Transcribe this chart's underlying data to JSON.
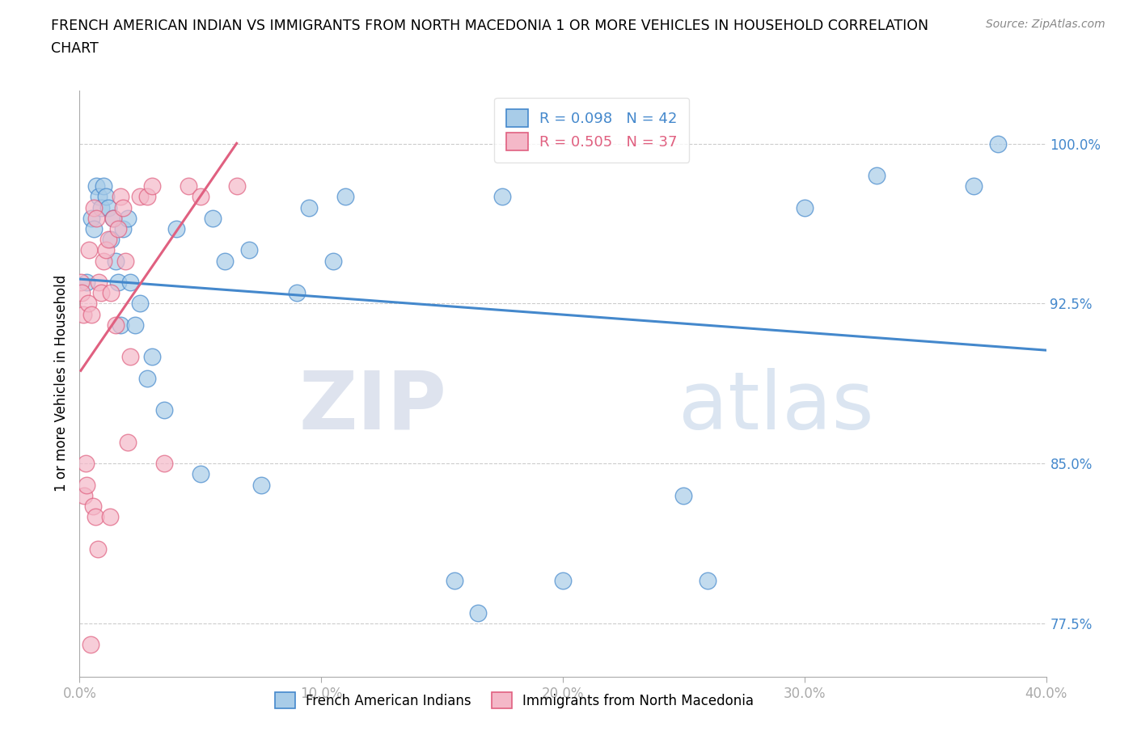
{
  "title_line1": "FRENCH AMERICAN INDIAN VS IMMIGRANTS FROM NORTH MACEDONIA 1 OR MORE VEHICLES IN HOUSEHOLD CORRELATION",
  "title_line2": "CHART",
  "source_text": "Source: ZipAtlas.com",
  "xlabel_ticks": [
    "0.0%",
    "10.0%",
    "20.0%",
    "30.0%",
    "40.0%"
  ],
  "xlabel_tick_vals": [
    0.0,
    10.0,
    20.0,
    30.0,
    40.0
  ],
  "ylabel": "1 or more Vehicles in Household",
  "ylabel_ticks": [
    "77.5%",
    "85.0%",
    "92.5%",
    "100.0%"
  ],
  "ylabel_tick_vals": [
    77.5,
    85.0,
    92.5,
    100.0
  ],
  "xlim": [
    0.0,
    40.0
  ],
  "ylim": [
    75.0,
    102.5
  ],
  "legend_blue_r": "R = 0.098",
  "legend_blue_n": "N = 42",
  "legend_pink_r": "R = 0.505",
  "legend_pink_n": "N = 37",
  "legend_label_blue": "French American Indians",
  "legend_label_pink": "Immigrants from North Macedonia",
  "blue_color": "#a8cce8",
  "pink_color": "#f4b8c8",
  "blue_line_color": "#4488cc",
  "pink_line_color": "#e06080",
  "text_color_blue": "#4488cc",
  "watermark_zip": "ZIP",
  "watermark_atlas": "atlas",
  "blue_x": [
    0.3,
    0.5,
    0.6,
    0.7,
    0.8,
    0.9,
    1.0,
    1.1,
    1.2,
    1.3,
    1.4,
    1.5,
    1.6,
    1.7,
    1.8,
    2.0,
    2.1,
    2.3,
    2.5,
    2.8,
    3.0,
    3.5,
    4.0,
    5.0,
    5.5,
    6.0,
    7.5,
    9.0,
    9.5,
    10.5,
    11.0,
    15.5,
    16.5,
    17.5,
    20.0,
    25.0,
    30.0,
    33.0,
    37.0,
    38.0,
    26.0,
    7.0
  ],
  "blue_y": [
    93.5,
    96.5,
    96.0,
    98.0,
    97.5,
    97.0,
    98.0,
    97.5,
    97.0,
    95.5,
    96.5,
    94.5,
    93.5,
    91.5,
    96.0,
    96.5,
    93.5,
    91.5,
    92.5,
    89.0,
    90.0,
    87.5,
    96.0,
    84.5,
    96.5,
    94.5,
    84.0,
    93.0,
    97.0,
    94.5,
    97.5,
    79.5,
    78.0,
    97.5,
    79.5,
    83.5,
    97.0,
    98.5,
    98.0,
    100.0,
    79.5,
    95.0
  ],
  "pink_x": [
    0.05,
    0.1,
    0.15,
    0.2,
    0.3,
    0.35,
    0.4,
    0.5,
    0.6,
    0.7,
    0.8,
    0.9,
    1.0,
    1.1,
    1.2,
    1.3,
    1.4,
    1.5,
    1.6,
    1.7,
    1.8,
    1.9,
    2.0,
    2.1,
    2.5,
    2.8,
    3.0,
    3.5,
    4.5,
    5.0,
    6.5,
    0.25,
    0.45,
    0.55,
    0.65,
    0.75,
    1.25
  ],
  "pink_y": [
    93.5,
    93.0,
    92.0,
    83.5,
    84.0,
    92.5,
    95.0,
    92.0,
    97.0,
    96.5,
    93.5,
    93.0,
    94.5,
    95.0,
    95.5,
    93.0,
    96.5,
    91.5,
    96.0,
    97.5,
    97.0,
    94.5,
    86.0,
    90.0,
    97.5,
    97.5,
    98.0,
    85.0,
    98.0,
    97.5,
    98.0,
    85.0,
    76.5,
    83.0,
    82.5,
    81.0,
    82.5
  ]
}
